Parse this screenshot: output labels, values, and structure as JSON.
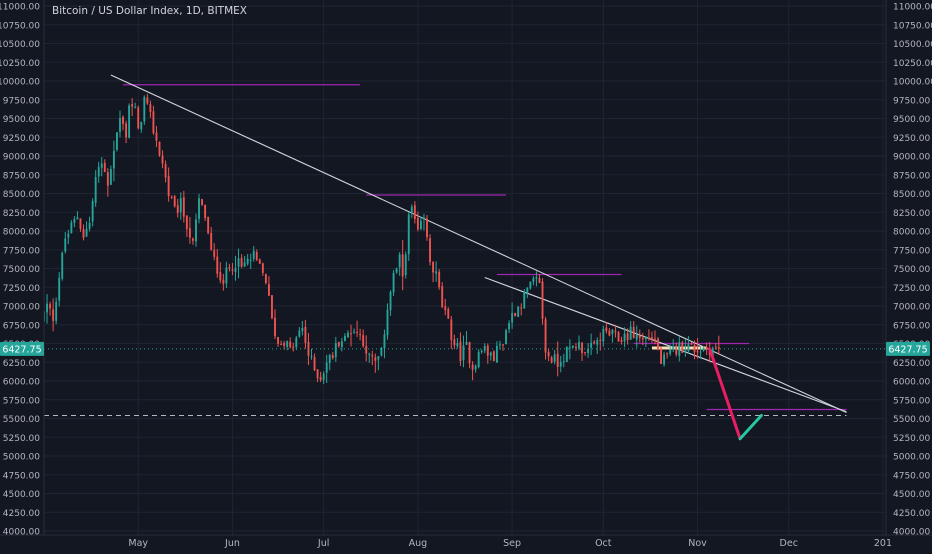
{
  "header": {
    "title": "Bitcoin / US Dollar Index, 1D, BITMEX"
  },
  "price_badge": {
    "value": "6427.75"
  },
  "colors": {
    "background": "#131722",
    "grid": "#1f2433",
    "axis_text": "#b2b5be",
    "up": "#26a69a",
    "down": "#ef5350",
    "trendline": "#d1d4dc",
    "resistance": "#9c27b0",
    "projection_down": "#e91e63",
    "projection_up": "#26c6a0",
    "price_line": "#26a69a",
    "support_dashed": "#d1d4dc",
    "consolidation": "#f5deb3"
  },
  "chart_data": {
    "type": "candlestick",
    "title": "Bitcoin / US Dollar Index, 1D, BITMEX",
    "xlabel": "",
    "ylabel": "",
    "ylim": [
      4000,
      11000
    ],
    "y_ticks": [
      "11000.00",
      "10750.00",
      "10500.00",
      "10250.00",
      "10000.00",
      "9750.00",
      "9500.00",
      "9250.00",
      "9000.00",
      "8750.00",
      "8500.00",
      "8250.00",
      "8000.00",
      "7750.00",
      "7500.00",
      "7250.00",
      "7000.00",
      "6750.00",
      "6500.00",
      "6250.00",
      "6000.00",
      "5750.00",
      "5500.00",
      "5250.00",
      "5000.00",
      "4750.00",
      "4500.00",
      "4250.00",
      "4000.00"
    ],
    "x_ticks": [
      {
        "label": "May",
        "day": 31
      },
      {
        "label": "Jun",
        "day": 62
      },
      {
        "label": "Jul",
        "day": 92
      },
      {
        "label": "Aug",
        "day": 123
      },
      {
        "label": "Sep",
        "day": 154
      },
      {
        "label": "Oct",
        "day": 184
      },
      {
        "label": "Nov",
        "day": 215
      },
      {
        "label": "Dec",
        "day": 245
      },
      {
        "label": "201",
        "day": 276
      }
    ],
    "x_range": [
      0,
      277
    ],
    "grid": true,
    "current_price": 6427.75,
    "price_anchors": [
      [
        0,
        6800
      ],
      [
        2,
        7000
      ],
      [
        4,
        6850
      ],
      [
        6,
        7400
      ],
      [
        8,
        7900
      ],
      [
        10,
        8050
      ],
      [
        12,
        8200
      ],
      [
        14,
        7950
      ],
      [
        16,
        8100
      ],
      [
        18,
        8700
      ],
      [
        20,
        8900
      ],
      [
        22,
        8650
      ],
      [
        24,
        9100
      ],
      [
        26,
        9500
      ],
      [
        28,
        9300
      ],
      [
        29,
        9700
      ],
      [
        31,
        9600
      ],
      [
        32,
        9300
      ],
      [
        34,
        9750
      ],
      [
        36,
        9500
      ],
      [
        38,
        9200
      ],
      [
        40,
        8900
      ],
      [
        42,
        8500
      ],
      [
        44,
        8250
      ],
      [
        46,
        8350
      ],
      [
        48,
        8100
      ],
      [
        50,
        7800
      ],
      [
        52,
        8400
      ],
      [
        54,
        8200
      ],
      [
        56,
        7700
      ],
      [
        58,
        7500
      ],
      [
        60,
        7350
      ],
      [
        62,
        7500
      ],
      [
        64,
        7600
      ],
      [
        66,
        7500
      ],
      [
        68,
        7600
      ],
      [
        70,
        7650
      ],
      [
        72,
        7500
      ],
      [
        74,
        7350
      ],
      [
        76,
        6800
      ],
      [
        78,
        6500
      ],
      [
        80,
        6550
      ],
      [
        82,
        6400
      ],
      [
        84,
        6550
      ],
      [
        86,
        6700
      ],
      [
        88,
        6350
      ],
      [
        90,
        6150
      ],
      [
        92,
        6050
      ],
      [
        94,
        6250
      ],
      [
        96,
        6350
      ],
      [
        98,
        6550
      ],
      [
        100,
        6550
      ],
      [
        102,
        6700
      ],
      [
        104,
        6650
      ],
      [
        106,
        6550
      ],
      [
        108,
        6300
      ],
      [
        110,
        6250
      ],
      [
        112,
        6350
      ],
      [
        114,
        7000
      ],
      [
        116,
        7400
      ],
      [
        118,
        7600
      ],
      [
        119,
        7400
      ],
      [
        121,
        8150
      ],
      [
        122,
        8300
      ],
      [
        124,
        7950
      ],
      [
        126,
        8150
      ],
      [
        128,
        7600
      ],
      [
        130,
        7400
      ],
      [
        132,
        7000
      ],
      [
        134,
        6750
      ],
      [
        136,
        6500
      ],
      [
        138,
        6350
      ],
      [
        140,
        6450
      ],
      [
        142,
        6200
      ],
      [
        144,
        6350
      ],
      [
        146,
        6450
      ],
      [
        148,
        6300
      ],
      [
        150,
        6400
      ],
      [
        152,
        6550
      ],
      [
        154,
        6800
      ],
      [
        156,
        6950
      ],
      [
        158,
        7050
      ],
      [
        160,
        7200
      ],
      [
        162,
        7300
      ],
      [
        164,
        7350
      ],
      [
        165,
        6800
      ],
      [
        166,
        6400
      ],
      [
        168,
        6300
      ],
      [
        170,
        6250
      ],
      [
        172,
        6350
      ],
      [
        174,
        6400
      ],
      [
        176,
        6500
      ],
      [
        178,
        6450
      ],
      [
        180,
        6400
      ],
      [
        182,
        6450
      ],
      [
        184,
        6600
      ],
      [
        186,
        6650
      ],
      [
        188,
        6600
      ],
      [
        190,
        6550
      ],
      [
        192,
        6600
      ],
      [
        194,
        6650
      ],
      [
        196,
        6600
      ],
      [
        198,
        6550
      ],
      [
        200,
        6600
      ],
      [
        202,
        6550
      ],
      [
        204,
        6250
      ],
      [
        206,
        6300
      ],
      [
        208,
        6400
      ],
      [
        210,
        6450
      ],
      [
        212,
        6480
      ],
      [
        214,
        6440
      ],
      [
        216,
        6420
      ],
      [
        218,
        6440
      ],
      [
        220,
        6430
      ],
      [
        222,
        6427.75
      ]
    ],
    "trendlines": [
      {
        "from": [
          22,
          10080
        ],
        "to": [
          264,
          5580
        ]
      },
      {
        "from": [
          145,
          7380
        ],
        "to": [
          264,
          5590
        ]
      }
    ],
    "resistance_levels": [
      {
        "from": [
          26,
          9950
        ],
        "to": [
          104,
          9950
        ]
      },
      {
        "from": [
          106,
          8480
        ],
        "to": [
          152,
          8480
        ]
      },
      {
        "from": [
          149,
          7420
        ],
        "to": [
          190,
          7420
        ]
      },
      {
        "from": [
          194,
          6500
        ],
        "to": [
          232,
          6500
        ]
      },
      {
        "from": [
          218,
          5620
        ],
        "to": [
          264,
          5620
        ]
      }
    ],
    "support_dashed": {
      "from": [
        0,
        5540
      ],
      "to": [
        264,
        5540
      ]
    },
    "price_line": {
      "value": 6427.75
    },
    "consolidation_zone": {
      "from": [
        200,
        6440
      ],
      "to": [
        218,
        6440
      ]
    },
    "projection": [
      [
        219,
        6427.75
      ],
      [
        229,
        5230
      ],
      [
        236,
        5540
      ]
    ]
  }
}
